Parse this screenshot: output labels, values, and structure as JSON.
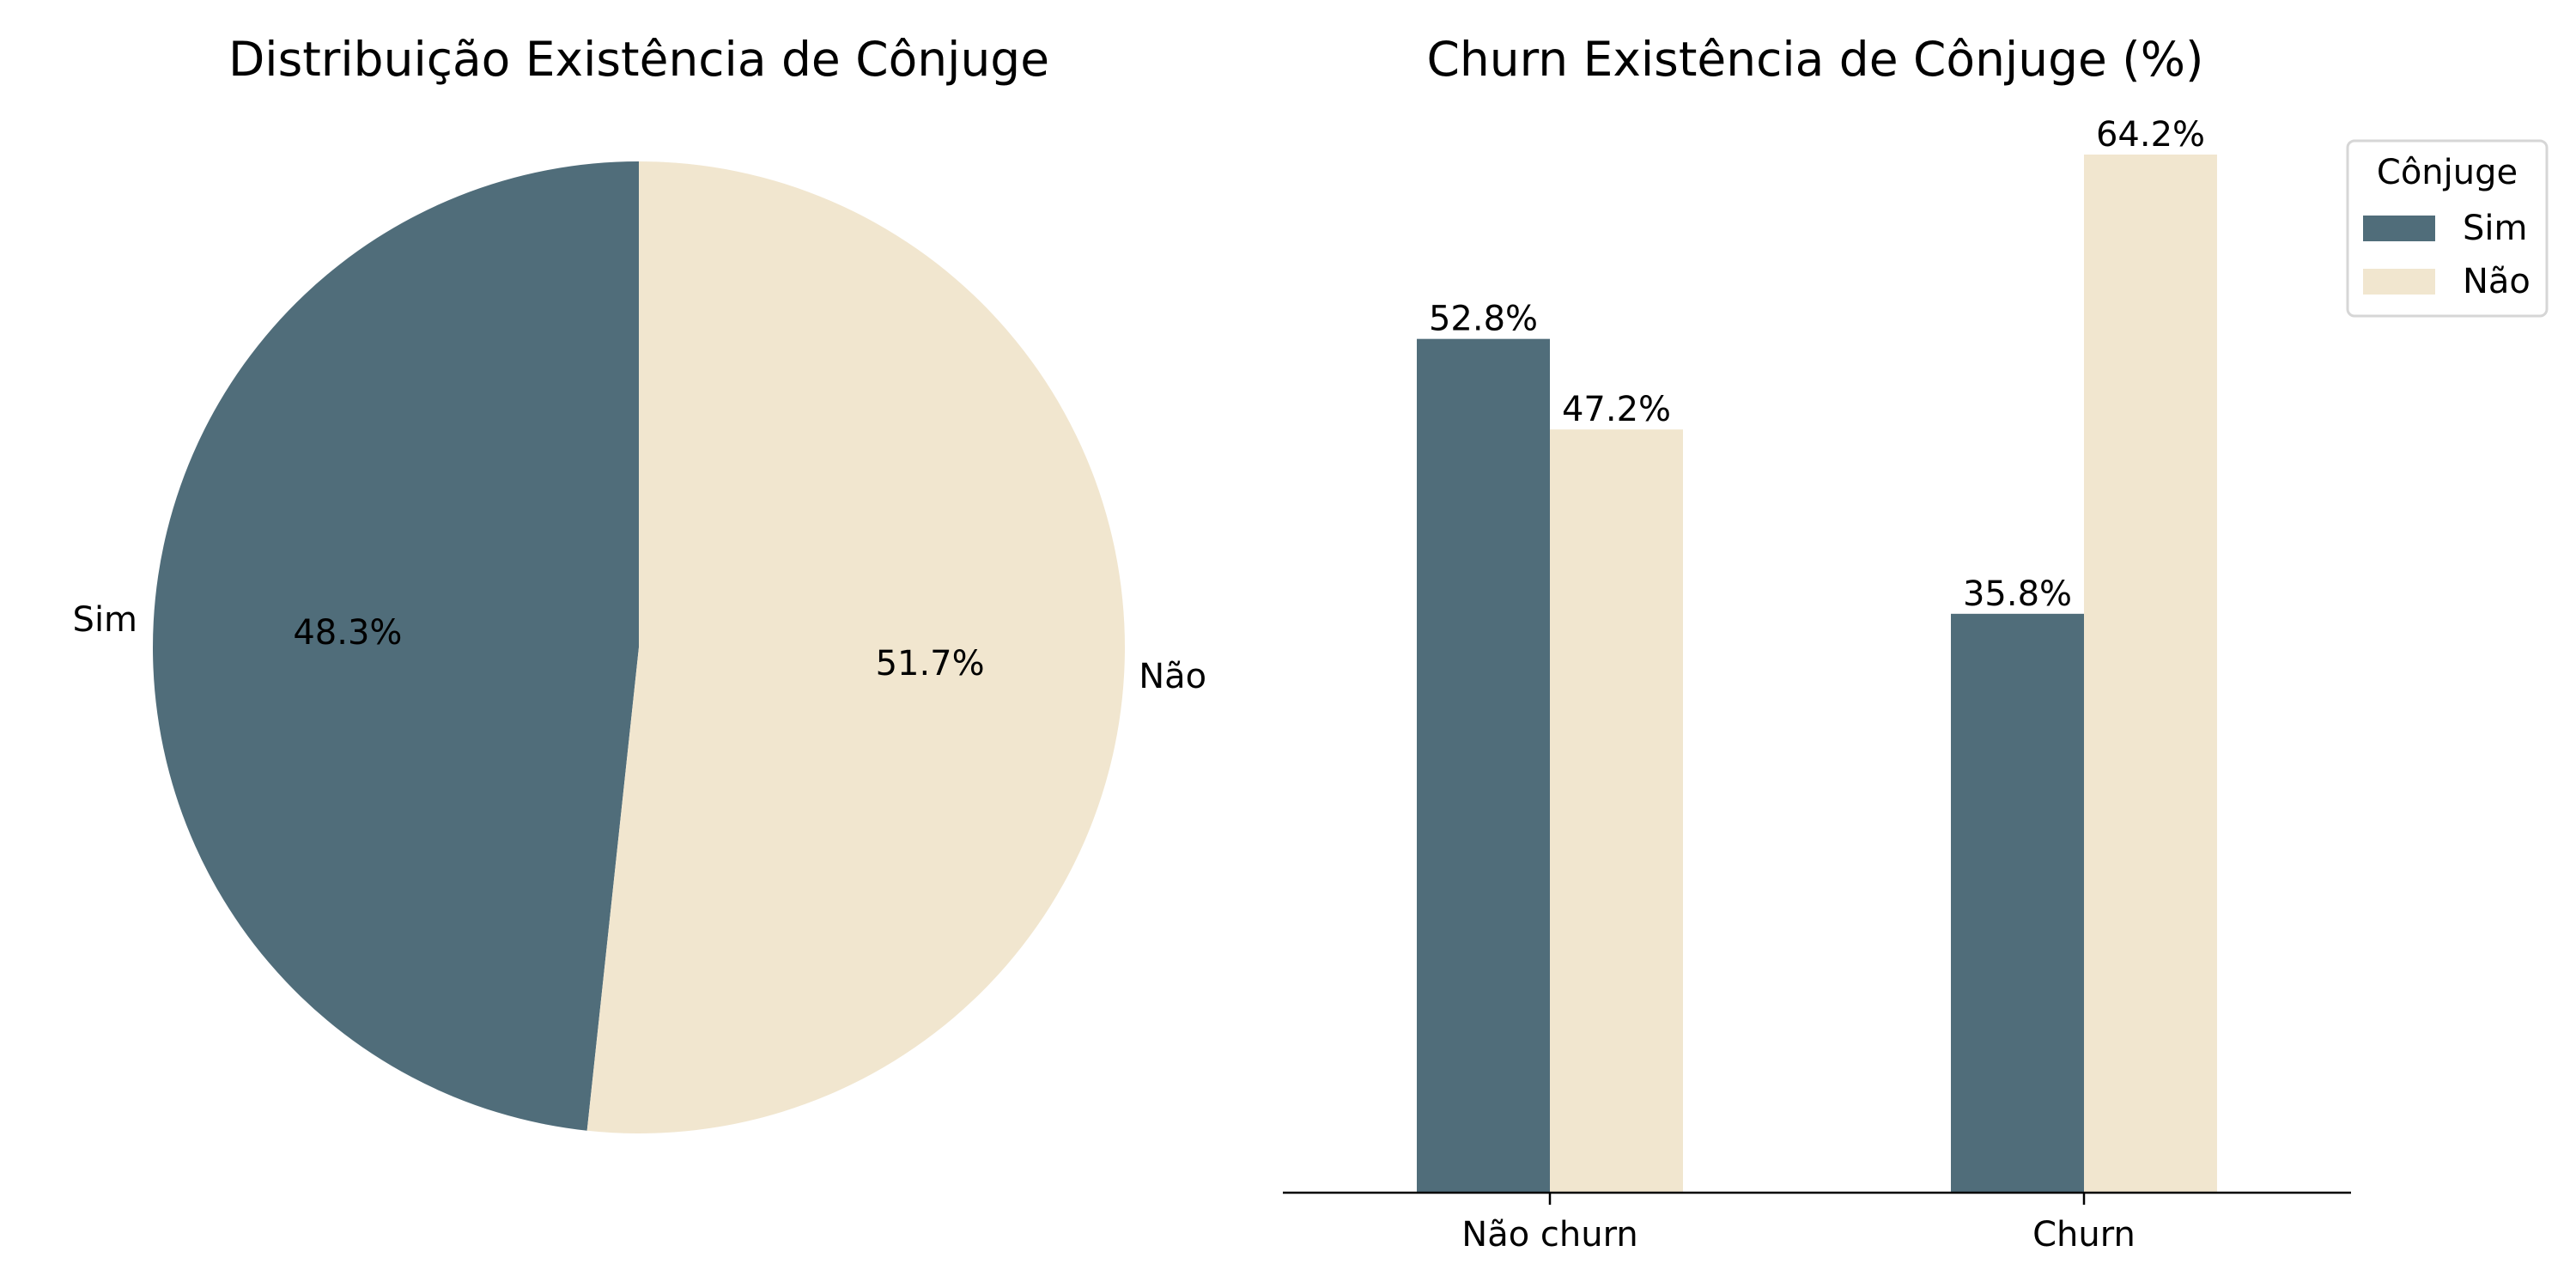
{
  "chart_data": [
    {
      "type": "pie",
      "title": "Distribuição Existência de Cônjuge",
      "labels": [
        "Sim",
        "Não"
      ],
      "values": [
        48.3,
        51.7
      ],
      "value_labels": [
        "48.3%",
        "51.7%"
      ],
      "colors": [
        "#506d7a",
        "#f1e6cf"
      ],
      "start": "top, counter-clockwise"
    },
    {
      "type": "bar",
      "title": "Churn Existência de Cônjuge (%)",
      "categories": [
        "Não churn",
        "Churn"
      ],
      "series": [
        {
          "name": "Sim",
          "values": [
            52.8,
            35.8
          ],
          "value_labels": [
            "52.8%",
            "35.8%"
          ],
          "color": "#506d7a"
        },
        {
          "name": "Não",
          "values": [
            47.2,
            64.2
          ],
          "value_labels": [
            "47.2%",
            "64.2%"
          ],
          "color": "#f1e6cf"
        }
      ],
      "ylim": [
        0,
        64.2
      ],
      "legend": {
        "title": "Cônjuge",
        "placement": "top-right"
      },
      "grid": false
    }
  ]
}
